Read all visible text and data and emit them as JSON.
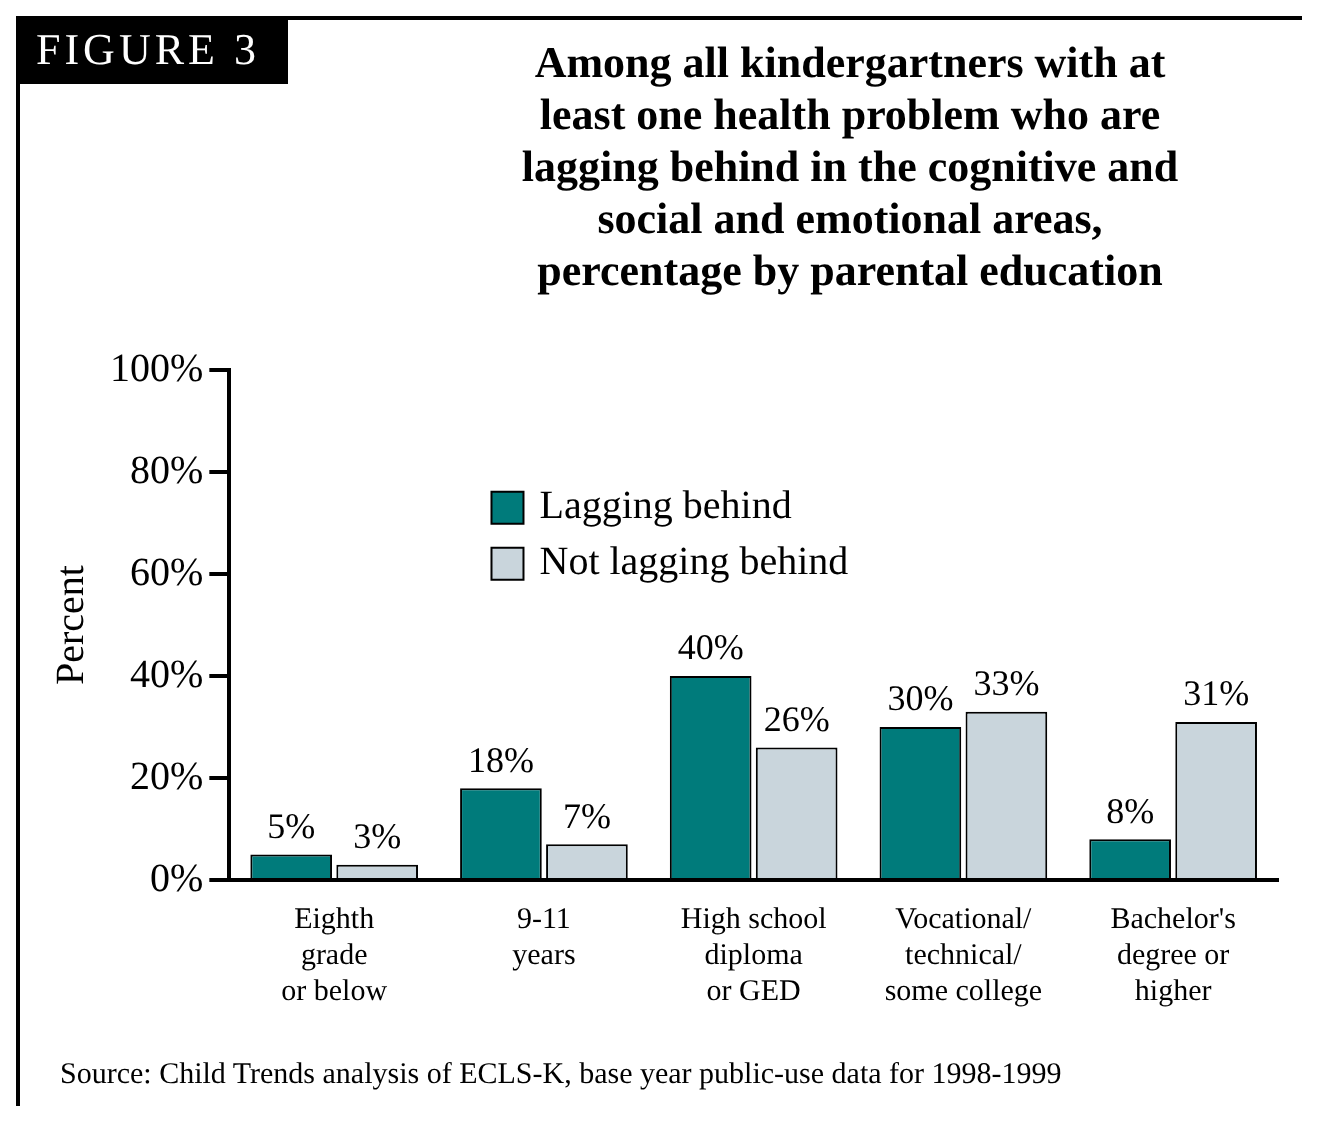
{
  "chart_data": {
    "type": "bar",
    "title": "Among all kindergartners with at\nleast one health problem who are\nlagging behind in the cognitive and\nsocial and emotional areas,\npercentage by parental education",
    "ylabel": "Percent",
    "annotations": [
      "FIGURE 3",
      "Source: Child Trends analysis of ECLS-K, base year public-use data for 1998-1999"
    ],
    "categories": [
      "Eighth\ngrade\nor below",
      "9-11\nyears",
      "High school\ndiploma\nor GED",
      "Vocational/\ntechnical/\nsome college",
      "Bachelor's\ndegree or\nhigher"
    ],
    "series": [
      {
        "name": "Lagging behind",
        "color": "#007b7b",
        "values": [
          5,
          18,
          40,
          30,
          8
        ],
        "value_labels": [
          "5%",
          "18%",
          "40%",
          "30%",
          "8%"
        ]
      },
      {
        "name": "Not lagging behind",
        "color": "#c9d5dc",
        "values": [
          3,
          7,
          26,
          33,
          31
        ],
        "value_labels": [
          "3%",
          "7%",
          "26%",
          "33%",
          "31%"
        ]
      }
    ],
    "ylim": [
      0,
      100
    ],
    "yticks": [
      {
        "value": 0,
        "label": "0%"
      },
      {
        "value": 20,
        "label": "20%"
      },
      {
        "value": 40,
        "label": "40%"
      },
      {
        "value": 60,
        "label": "60%"
      },
      {
        "value": 80,
        "label": "80%"
      },
      {
        "value": 100,
        "label": "100%"
      }
    ],
    "grid": false,
    "legend": "top"
  }
}
